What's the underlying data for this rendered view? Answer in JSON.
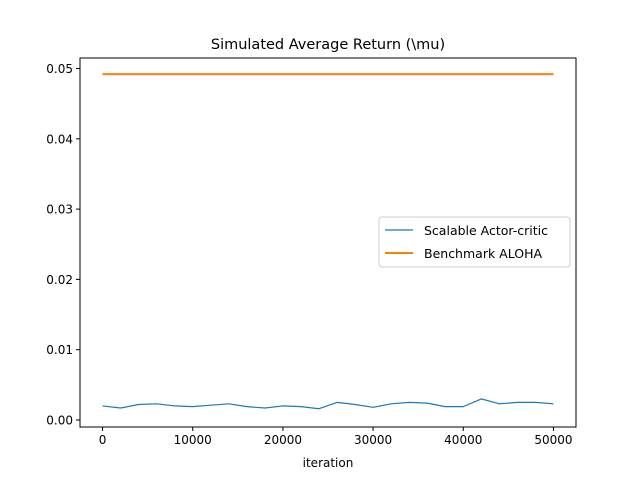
{
  "chart_data": {
    "type": "line",
    "title": "Simulated Average Return (\\mu)",
    "xlabel": "iteration",
    "ylabel": "",
    "xlim": [
      -2500,
      52500
    ],
    "ylim": [
      -0.001,
      0.0515
    ],
    "xticks": [
      0,
      10000,
      20000,
      30000,
      40000,
      50000
    ],
    "xtick_labels": [
      "0",
      "10000",
      "20000",
      "30000",
      "40000",
      "50000"
    ],
    "yticks": [
      0.0,
      0.01,
      0.02,
      0.03,
      0.04,
      0.05
    ],
    "ytick_labels": [
      "0.00",
      "0.01",
      "0.02",
      "0.03",
      "0.04",
      "0.05"
    ],
    "grid": false,
    "legend_position": "center-right",
    "series": [
      {
        "name": "Scalable Actor-critic",
        "color": "#1f77b4",
        "x": [
          0,
          2000,
          4000,
          6000,
          8000,
          10000,
          12000,
          14000,
          16000,
          18000,
          20000,
          22000,
          24000,
          26000,
          28000,
          30000,
          32000,
          34000,
          36000,
          38000,
          40000,
          42000,
          44000,
          46000,
          48000,
          50000
        ],
        "y": [
          0.002,
          0.0017,
          0.0022,
          0.0023,
          0.002,
          0.0019,
          0.0021,
          0.0023,
          0.0019,
          0.0017,
          0.002,
          0.0019,
          0.0016,
          0.0025,
          0.0022,
          0.0018,
          0.0023,
          0.0025,
          0.0024,
          0.0019,
          0.0019,
          0.003,
          0.0023,
          0.0025,
          0.0025,
          0.0023
        ]
      },
      {
        "name": "Benchmark ALOHA",
        "color": "#ff7f0e",
        "x": [
          0,
          50000
        ],
        "y": [
          0.0492,
          0.0492
        ]
      }
    ]
  }
}
